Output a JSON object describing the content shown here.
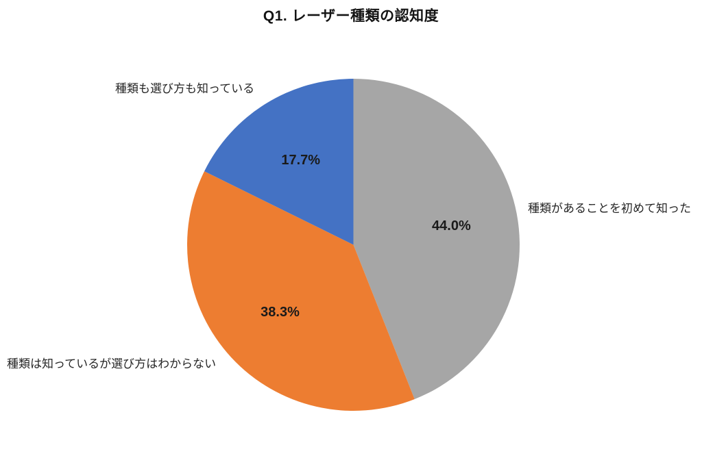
{
  "title": "Q1. レーザー種類の認知度",
  "chart_data": {
    "type": "pie",
    "title": "Q1. レーザー種類の認知度",
    "labels": [
      "種類があることを初めて知った",
      "種類は知っているが選び方はわからない",
      "種類も選び方も知っている"
    ],
    "values": [
      44.0,
      38.3,
      17.7
    ],
    "value_labels": [
      "44.0%",
      "38.3%",
      "17.7%"
    ],
    "colors": [
      "#a6a6a6",
      "#ed7d31",
      "#4472c4"
    ],
    "start_angle_deg": 0,
    "direction": "clockwise",
    "legend": "none",
    "data_label_position": "inside",
    "category_label_position": "outside",
    "background": "#ffffff"
  }
}
